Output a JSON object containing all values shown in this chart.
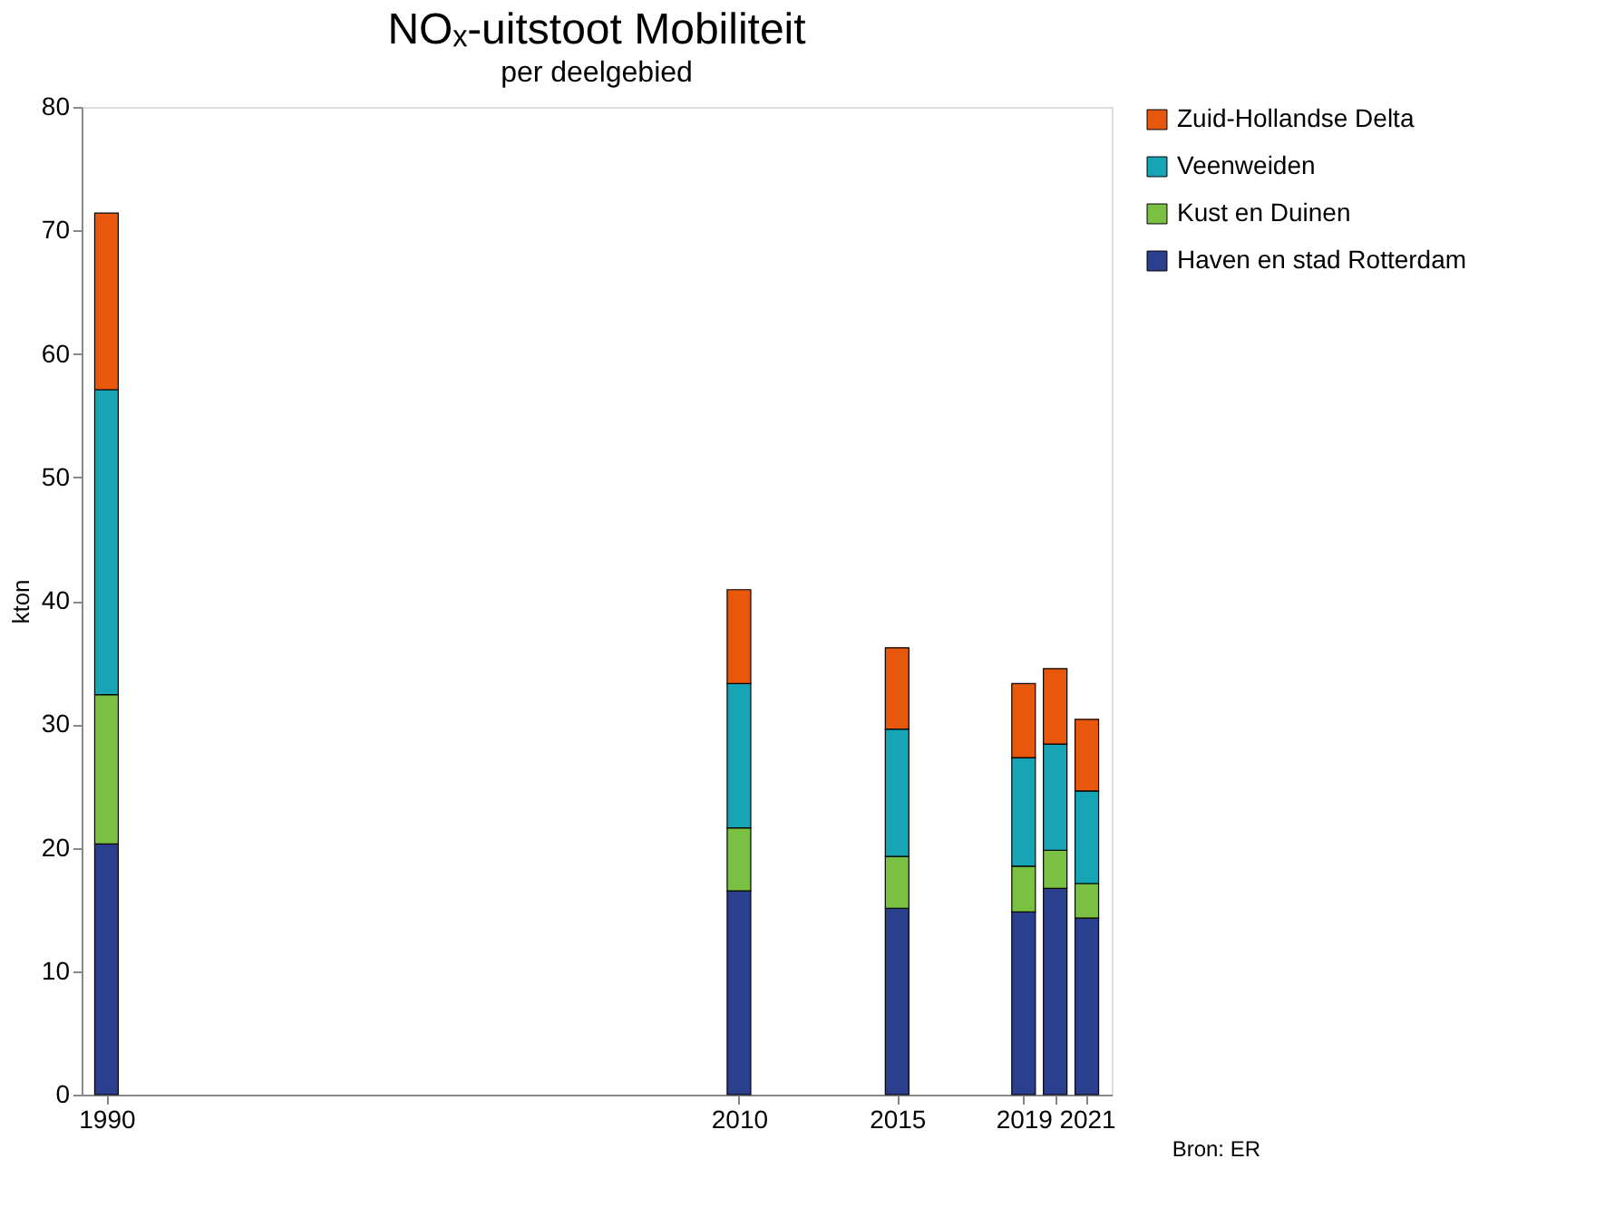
{
  "chart_data": {
    "type": "bar",
    "title": "NOₓ-uitstoot Mobiliteit",
    "subtitle": "per deelgebied",
    "ylabel": "kton",
    "x": [
      1990,
      2010,
      2015,
      2019,
      2020,
      2021
    ],
    "stacked": true,
    "series": [
      {
        "name": "Haven en stad Rotterdam",
        "color": "#2b3f8f",
        "values": [
          20.3,
          16.5,
          15.1,
          14.8,
          16.7,
          14.3
        ]
      },
      {
        "name": "Kust en Duinen",
        "color": "#7ac143",
        "values": [
          12.1,
          5.1,
          4.2,
          3.7,
          3.1,
          2.8
        ]
      },
      {
        "name": "Veenweiden",
        "color": "#17a5b5",
        "values": [
          24.7,
          11.7,
          10.3,
          8.8,
          8.6,
          7.5
        ]
      },
      {
        "name": "Zuid-Hollandse Delta",
        "color": "#e8580c",
        "values": [
          14.3,
          7.6,
          6.6,
          6.0,
          6.1,
          5.8
        ]
      }
    ],
    "xlim": [
      1989.5,
      2021.5
    ],
    "xticks": [
      1990,
      2010,
      2015,
      2019,
      {
        "value": 2020,
        "label": null
      },
      2021
    ],
    "ylim": [
      0,
      80
    ],
    "yticks": [
      0,
      10,
      20,
      30,
      40,
      50,
      60,
      70,
      80
    ],
    "grid": false,
    "legend": "right",
    "annotations": [
      "Bron: ER"
    ]
  }
}
